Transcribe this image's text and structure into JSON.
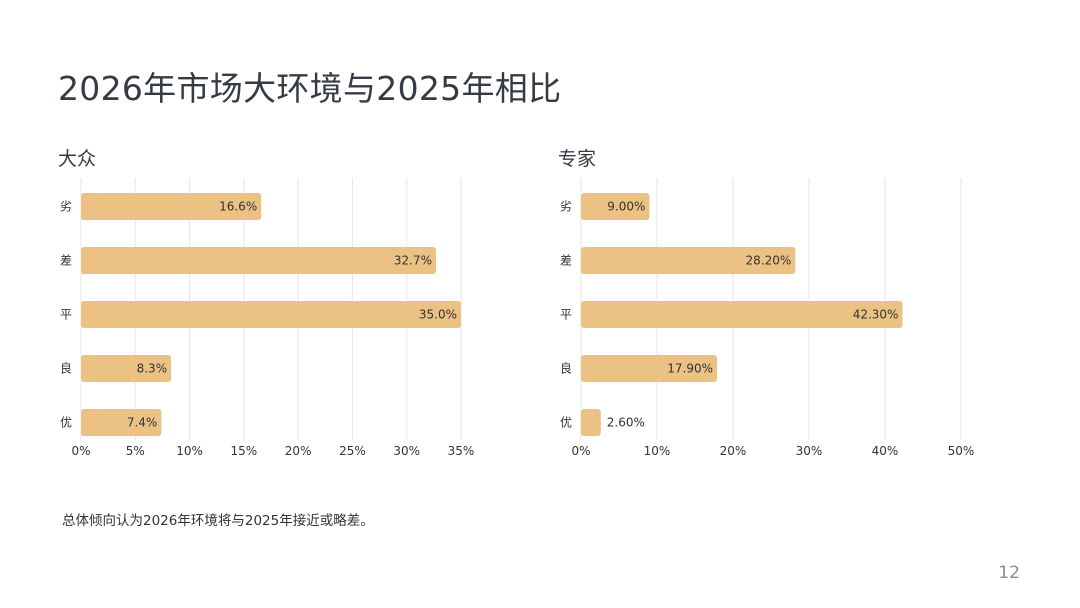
{
  "page": {
    "title": "2026年市场大环境与2025年相比",
    "note": "总体倾向认为2026年环境将与2025年接近或略差。",
    "page_number": "12"
  },
  "colors": {
    "bar": "#ecc284",
    "grid": "#e6e6e6",
    "text": "#333333"
  },
  "chart_data": [
    {
      "type": "bar",
      "orientation": "horizontal",
      "title": "大众",
      "categories": [
        "劣",
        "差",
        "平",
        "良",
        "优"
      ],
      "values": [
        16.6,
        32.7,
        35.0,
        8.3,
        7.4
      ],
      "value_labels": [
        "16.6%",
        "32.7%",
        "35.0%",
        "8.3%",
        "7.4%"
      ],
      "xlim": [
        0,
        35
      ],
      "xticks": [
        0,
        5,
        10,
        15,
        20,
        25,
        30,
        35
      ],
      "xtick_labels": [
        "0%",
        "5%",
        "10%",
        "15%",
        "20%",
        "25%",
        "30%",
        "35%"
      ],
      "xlabel": "",
      "ylabel": "",
      "grid": true
    },
    {
      "type": "bar",
      "orientation": "horizontal",
      "title": "专家",
      "categories": [
        "劣",
        "差",
        "平",
        "良",
        "优"
      ],
      "values": [
        9.0,
        28.2,
        42.3,
        17.9,
        2.6
      ],
      "value_labels": [
        "9.00%",
        "28.20%",
        "42.30%",
        "17.90%",
        "2.60%"
      ],
      "xlim": [
        0,
        50
      ],
      "xticks": [
        0,
        10,
        20,
        30,
        40,
        50
      ],
      "xtick_labels": [
        "0%",
        "10%",
        "20%",
        "30%",
        "40%",
        "50%"
      ],
      "xlabel": "",
      "ylabel": "",
      "grid": true
    }
  ]
}
